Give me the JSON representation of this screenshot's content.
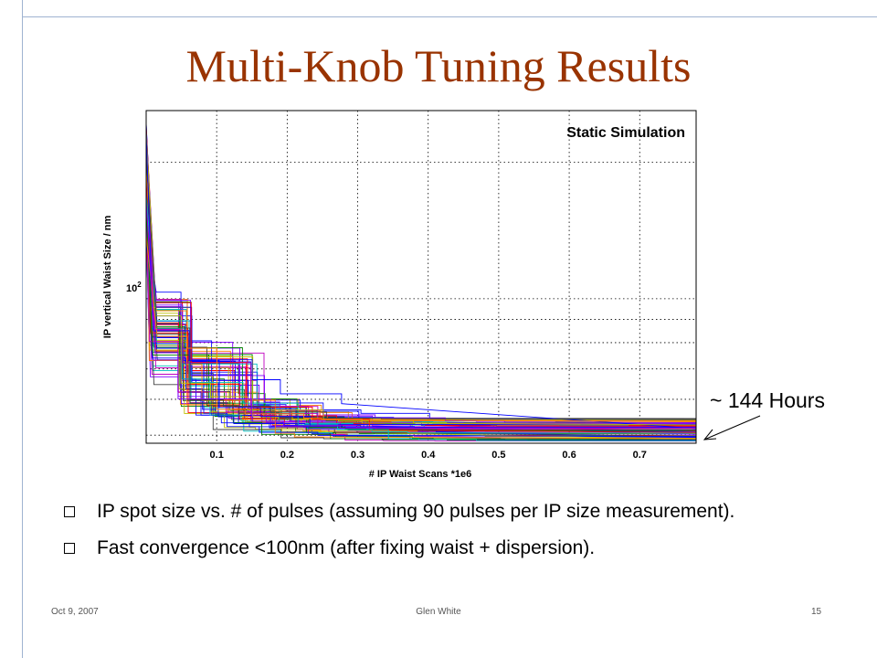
{
  "slide": {
    "title": "Multi-Knob Tuning Results",
    "annotation": "~ 144 Hours",
    "bullets": [
      "IP spot size vs. # of pulses (assuming 90 pulses per IP size measurement).",
      "Fast convergence <100nm (after fixing waist + dispersion)."
    ],
    "footer": {
      "date": "Oct 9, 2007",
      "author": "Glen White",
      "page": "15"
    }
  },
  "chart_data": {
    "type": "line",
    "title": "Static Simulation",
    "xlabel": "# IP Waist Scans *1e6",
    "ylabel": "IP vertical Waist Size / nm",
    "xlim": [
      0,
      0.78
    ],
    "xticks": [
      "0.1",
      "0.2",
      "0.3",
      "0.4",
      "0.5",
      "0.6",
      "0.7"
    ],
    "ylog": true,
    "ylim": [
      48,
      260
    ],
    "ytick_label": "10",
    "ytick_exp": "2",
    "grid": true,
    "series_note": "many overlapping trajectories, each starting ~150-250 nm and converging to ~50-55 nm by ~0.1e6 scans",
    "colors": [
      "#0000ff",
      "#008000",
      "#ff0000",
      "#00bfbf",
      "#bf00bf",
      "#bfbf00",
      "#404040",
      "#0a0aff",
      "#ff7f00",
      "#7f00ff"
    ]
  }
}
